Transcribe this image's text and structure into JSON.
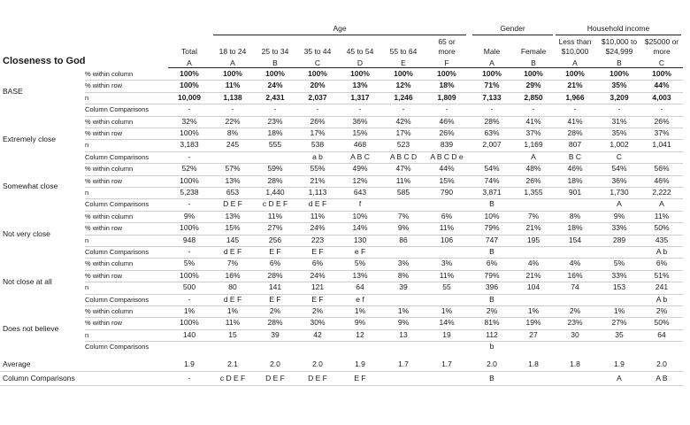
{
  "title": "Closeness to God",
  "groups": [
    {
      "label": "Age",
      "from": 1,
      "to": 6
    },
    {
      "label": "Gender",
      "from": 7,
      "to": 8
    },
    {
      "label": "Household income",
      "from": 9,
      "to": 11
    }
  ],
  "columns": [
    {
      "label": [
        "Total"
      ],
      "letter": "A"
    },
    {
      "label": [
        "18 to 24"
      ],
      "letter": "A"
    },
    {
      "label": [
        "25 to 34"
      ],
      "letter": "B"
    },
    {
      "label": [
        "35 to 44"
      ],
      "letter": "C"
    },
    {
      "label": [
        "45 to 54"
      ],
      "letter": "D"
    },
    {
      "label": [
        "55 to 64"
      ],
      "letter": "E"
    },
    {
      "label": [
        "65 or",
        "more"
      ],
      "letter": "F"
    },
    {
      "label": [
        "Male"
      ],
      "letter": "A"
    },
    {
      "label": [
        "Female"
      ],
      "letter": "B"
    },
    {
      "label": [
        "Less than",
        "$10,000"
      ],
      "letter": "A"
    },
    {
      "label": [
        "$10,000 to",
        "$24,999"
      ],
      "letter": "B"
    },
    {
      "label": [
        "$25000 or",
        "more"
      ],
      "letter": "C"
    }
  ],
  "sections": [
    {
      "label": "BASE",
      "rows": [
        {
          "stat": "% within column",
          "bold": true,
          "values": [
            "100%",
            "100%",
            "100%",
            "100%",
            "100%",
            "100%",
            "100%",
            "100%",
            "100%",
            "100%",
            "100%",
            "100%"
          ]
        },
        {
          "stat": "% within row",
          "bold": true,
          "values": [
            "100%",
            "11%",
            "24%",
            "20%",
            "13%",
            "12%",
            "18%",
            "71%",
            "29%",
            "21%",
            "35%",
            "44%"
          ]
        },
        {
          "stat": "n",
          "bold": true,
          "values": [
            "10,009",
            "1,138",
            "2,431",
            "2,037",
            "1,317",
            "1,246",
            "1,809",
            "7,133",
            "2,850",
            "1,966",
            "3,209",
            "4,003"
          ]
        },
        {
          "stat": "Column Comparisons",
          "bold": false,
          "values": [
            "-",
            "-",
            "-",
            "-",
            "-",
            "-",
            "-",
            "-",
            "-",
            "-",
            "-",
            "-"
          ]
        }
      ]
    },
    {
      "label": "Extremely close",
      "rows": [
        {
          "stat": "% within column",
          "bold": false,
          "values": [
            "32%",
            "22%",
            "23%",
            "26%",
            "36%",
            "42%",
            "46%",
            "28%",
            "41%",
            "41%",
            "31%",
            "26%"
          ]
        },
        {
          "stat": "% within row",
          "bold": false,
          "values": [
            "100%",
            "8%",
            "18%",
            "17%",
            "15%",
            "17%",
            "26%",
            "63%",
            "37%",
            "28%",
            "35%",
            "37%"
          ]
        },
        {
          "stat": "n",
          "bold": false,
          "values": [
            "3,183",
            "245",
            "555",
            "538",
            "468",
            "523",
            "839",
            "2,007",
            "1,169",
            "807",
            "1,002",
            "1,041"
          ]
        },
        {
          "stat": "Column Comparisons",
          "bold": false,
          "values": [
            "-",
            "",
            "",
            "a b",
            "A B C",
            "A B C D",
            "A B C D e",
            "",
            "A",
            "B C",
            "C",
            ""
          ]
        }
      ]
    },
    {
      "label": "Somewhat close",
      "rows": [
        {
          "stat": "% within column",
          "bold": false,
          "values": [
            "52%",
            "57%",
            "59%",
            "55%",
            "49%",
            "47%",
            "44%",
            "54%",
            "48%",
            "46%",
            "54%",
            "56%"
          ]
        },
        {
          "stat": "% within row",
          "bold": false,
          "values": [
            "100%",
            "13%",
            "28%",
            "21%",
            "12%",
            "11%",
            "15%",
            "74%",
            "26%",
            "18%",
            "36%",
            "46%"
          ]
        },
        {
          "stat": "n",
          "bold": false,
          "values": [
            "5,238",
            "653",
            "1,440",
            "1,113",
            "643",
            "585",
            "790",
            "3,871",
            "1,355",
            "901",
            "1,730",
            "2,222"
          ]
        },
        {
          "stat": "Column Comparisons",
          "bold": false,
          "values": [
            "-",
            "D E F",
            "c D E F",
            "d E F",
            "f",
            "",
            "",
            "B",
            "",
            "",
            "A",
            "A"
          ]
        }
      ]
    },
    {
      "label": "Not very close",
      "rows": [
        {
          "stat": "% within column",
          "bold": false,
          "values": [
            "9%",
            "13%",
            "11%",
            "11%",
            "10%",
            "7%",
            "6%",
            "10%",
            "7%",
            "8%",
            "9%",
            "11%"
          ]
        },
        {
          "stat": "% within row",
          "bold": false,
          "values": [
            "100%",
            "15%",
            "27%",
            "24%",
            "14%",
            "9%",
            "11%",
            "79%",
            "21%",
            "18%",
            "33%",
            "50%"
          ]
        },
        {
          "stat": "n",
          "bold": false,
          "values": [
            "948",
            "145",
            "256",
            "223",
            "130",
            "86",
            "106",
            "747",
            "195",
            "154",
            "289",
            "435"
          ]
        },
        {
          "stat": "Column Comparisons",
          "bold": false,
          "values": [
            "-",
            "d E F",
            "E F",
            "E F",
            "e F",
            "",
            "",
            "B",
            "",
            "",
            "",
            "A b"
          ]
        }
      ]
    },
    {
      "label": "Not close at all",
      "rows": [
        {
          "stat": "% within column",
          "bold": false,
          "values": [
            "5%",
            "7%",
            "6%",
            "6%",
            "5%",
            "3%",
            "3%",
            "6%",
            "4%",
            "4%",
            "5%",
            "6%"
          ]
        },
        {
          "stat": "% within row",
          "bold": false,
          "values": [
            "100%",
            "16%",
            "28%",
            "24%",
            "13%",
            "8%",
            "11%",
            "79%",
            "21%",
            "16%",
            "33%",
            "51%"
          ]
        },
        {
          "stat": "n",
          "bold": false,
          "values": [
            "500",
            "80",
            "141",
            "121",
            "64",
            "39",
            "55",
            "396",
            "104",
            "74",
            "153",
            "241"
          ]
        },
        {
          "stat": "Column Comparisons",
          "bold": false,
          "values": [
            "-",
            "d E F",
            "E F",
            "E F",
            "e f",
            "",
            "",
            "B",
            "",
            "",
            "",
            "A b"
          ]
        }
      ]
    },
    {
      "label": "Does not believe",
      "rows": [
        {
          "stat": "% within column",
          "bold": false,
          "values": [
            "1%",
            "1%",
            "2%",
            "2%",
            "1%",
            "1%",
            "1%",
            "2%",
            "1%",
            "2%",
            "1%",
            "2%"
          ]
        },
        {
          "stat": "% within row",
          "bold": false,
          "values": [
            "100%",
            "11%",
            "28%",
            "30%",
            "9%",
            "9%",
            "14%",
            "81%",
            "19%",
            "23%",
            "27%",
            "50%"
          ]
        },
        {
          "stat": "n",
          "bold": false,
          "values": [
            "140",
            "15",
            "39",
            "42",
            "12",
            "13",
            "19",
            "112",
            "27",
            "30",
            "35",
            "64"
          ]
        },
        {
          "stat": "Column Comparisons",
          "bold": false,
          "values": [
            "",
            "",
            "",
            "",
            "",
            "",
            "",
            "b",
            "",
            "",
            "",
            ""
          ]
        }
      ]
    }
  ],
  "footer": [
    {
      "label": "Average",
      "values": [
        "1.9",
        "2.1",
        "2.0",
        "2.0",
        "1.9",
        "1.7",
        "1.7",
        "2.0",
        "1.8",
        "1.8",
        "1.9",
        "2.0"
      ]
    },
    {
      "label": "Column Comparisons",
      "values": [
        "-",
        "c D E F",
        "D E F",
        "D E F",
        "E F",
        "",
        "",
        "B",
        "",
        "",
        "A",
        "A B"
      ]
    }
  ]
}
